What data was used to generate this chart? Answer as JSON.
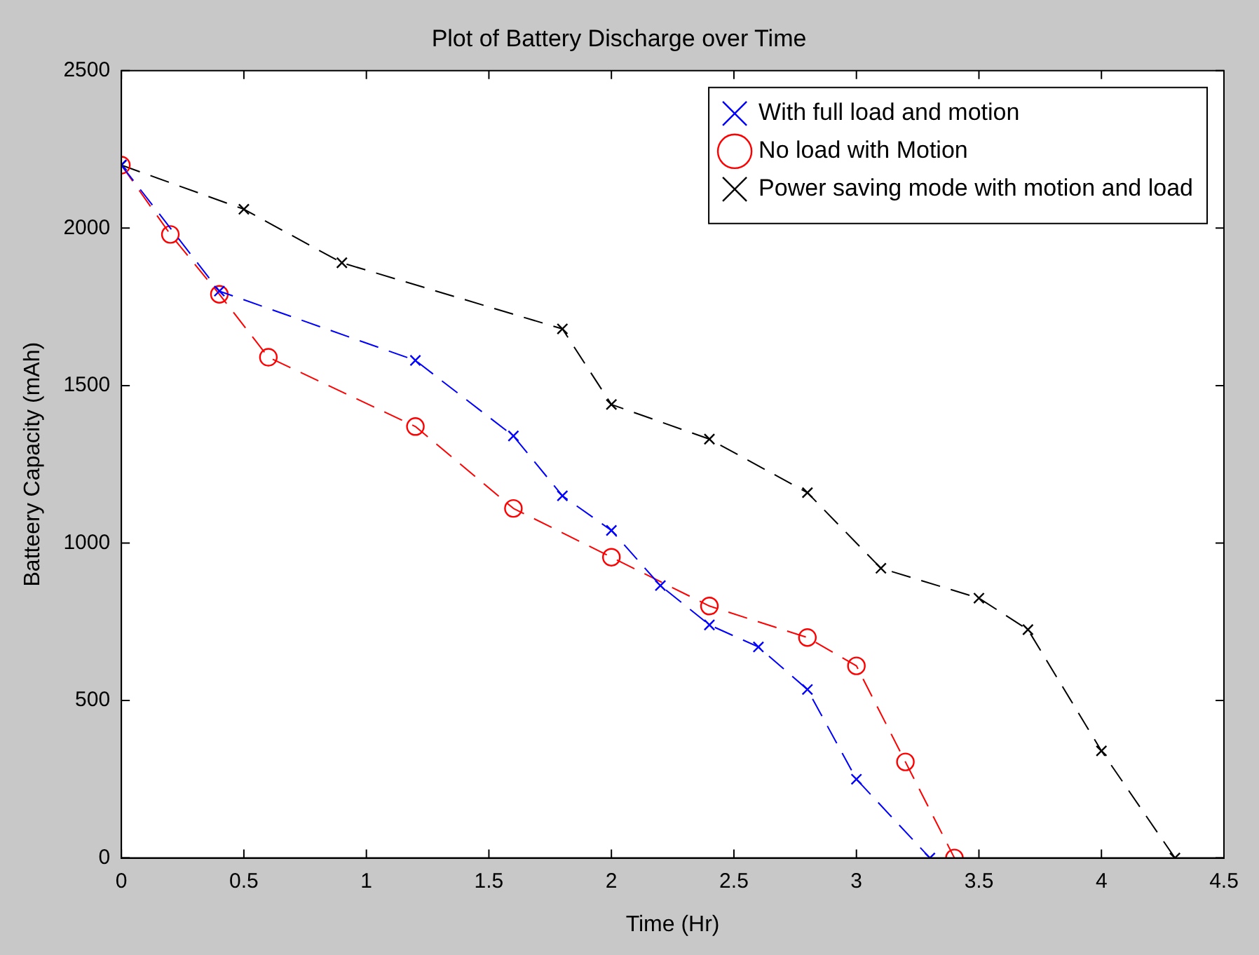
{
  "chart_data": {
    "type": "line",
    "title": "Plot of Battery Discharge over Time",
    "xlabel": "Time (Hr)",
    "ylabel": "Batteery Capacity (mAh)",
    "xlim": [
      0,
      4.5
    ],
    "xticks": [
      0,
      0.5,
      1,
      1.5,
      2,
      2.5,
      3,
      3.5,
      4,
      4.5
    ],
    "ylim": [
      0,
      2500
    ],
    "yticks": [
      0,
      500,
      1000,
      1500,
      2000,
      2500
    ],
    "grid": false,
    "legend": "top right",
    "line_style": "dashed",
    "series": [
      {
        "name": "With full load and motion",
        "color": "#0000ff",
        "marker": "cross",
        "x": [
          0,
          0.4,
          1.2,
          1.6,
          1.8,
          2.0,
          2.2,
          2.4,
          2.6,
          2.8,
          3.0,
          3.3
        ],
        "values": [
          2200,
          1800,
          1580,
          1340,
          1150,
          1040,
          865,
          740,
          670,
          535,
          250,
          0
        ]
      },
      {
        "name": "No load with Motion",
        "color": "#ff0000",
        "marker": "circle",
        "x": [
          0,
          0.2,
          0.4,
          0.6,
          1.2,
          1.6,
          2.0,
          2.4,
          2.8,
          3.0,
          3.2,
          3.4
        ],
        "values": [
          2200,
          1980,
          1790,
          1590,
          1370,
          1110,
          955,
          800,
          700,
          610,
          305,
          0
        ]
      },
      {
        "name": "Power saving mode with motion and load",
        "color": "#000000",
        "marker": "cross",
        "x": [
          0,
          0.5,
          0.9,
          1.8,
          2.0,
          2.4,
          2.8,
          3.1,
          3.5,
          3.7,
          4.0,
          4.3
        ],
        "values": [
          2200,
          2060,
          1890,
          1680,
          1440,
          1330,
          1160,
          920,
          825,
          725,
          340,
          0
        ]
      }
    ]
  }
}
